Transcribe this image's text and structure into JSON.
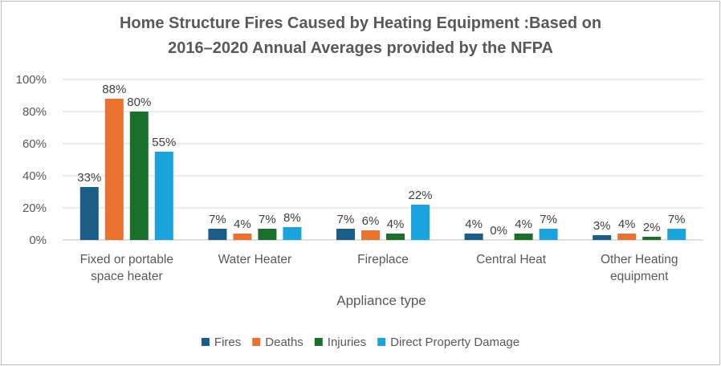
{
  "chart_data": {
    "type": "bar",
    "title_line1": "Home Structure Fires Caused by Heating Equipment :Based on",
    "title_line2": "2016–2020 Annual Averages provided by the NFPA",
    "xlabel": "Appliance type",
    "ylabel": "",
    "ylim": [
      0,
      100
    ],
    "yticks": [
      0,
      20,
      40,
      60,
      80,
      100
    ],
    "ytick_labels": [
      "0%",
      "20%",
      "40%",
      "60%",
      "80%",
      "100%"
    ],
    "grid": true,
    "legend_position": "bottom",
    "categories": [
      [
        "Fixed or portable",
        "space heater"
      ],
      [
        "Water Heater"
      ],
      [
        "Fireplace"
      ],
      [
        "Central Heat"
      ],
      [
        "Other Heating",
        "equipment"
      ]
    ],
    "series": [
      {
        "name": "Fires",
        "color": "#1a5d86",
        "values": [
          33,
          7,
          7,
          4,
          3
        ],
        "labels": [
          "33%",
          "7%",
          "7%",
          "4%",
          "3%"
        ]
      },
      {
        "name": "Deaths",
        "color": "#e8722e",
        "values": [
          88,
          4,
          6,
          0,
          4
        ],
        "labels": [
          "88%",
          "4%",
          "6%",
          "0%",
          "4%"
        ]
      },
      {
        "name": "Injuries",
        "color": "#1a6f2a",
        "values": [
          80,
          7,
          4,
          4,
          2
        ],
        "labels": [
          "80%",
          "7%",
          "4%",
          "4%",
          "2%"
        ]
      },
      {
        "name": "Direct Property Damage",
        "color": "#1aa3dc",
        "values": [
          55,
          8,
          22,
          7,
          7
        ],
        "labels": [
          "55%",
          "8%",
          "22%",
          "7%",
          "7%"
        ]
      }
    ]
  }
}
